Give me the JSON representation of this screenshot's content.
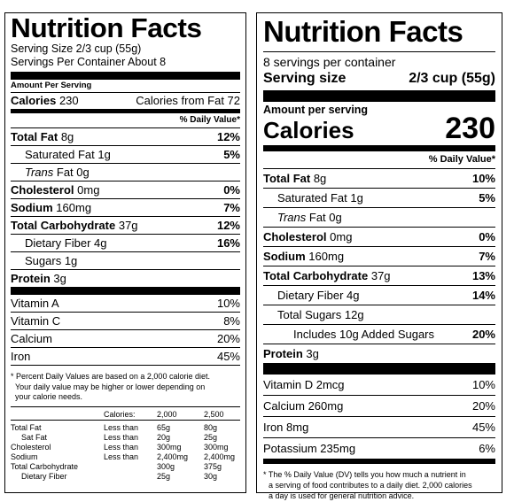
{
  "old_label": {
    "title": "Nutrition Facts",
    "serving_size": "Serving Size 2/3 cup (55g)",
    "servings_per_container": "Servings Per Container About 8",
    "amount_per_serving": "Amount Per Serving",
    "calories_label": "Calories",
    "calories_value": "230",
    "calories_from_fat": "Calories from Fat 72",
    "dv_header": "% Daily Value*",
    "nutrients": [
      {
        "label": "Total Fat",
        "amount": "8g",
        "dv": "12%"
      },
      {
        "label": "Saturated Fat",
        "amount": "1g",
        "dv": "5%"
      },
      {
        "label": "Trans",
        "amount": "Fat 0g",
        "dv": ""
      },
      {
        "label": "Cholesterol",
        "amount": "0mg",
        "dv": "0%"
      },
      {
        "label": "Sodium",
        "amount": "160mg",
        "dv": "7%"
      },
      {
        "label": "Total Carbohydrate",
        "amount": "37g",
        "dv": "12%"
      },
      {
        "label": "Dietary Fiber",
        "amount": "4g",
        "dv": "16%"
      },
      {
        "label": "Sugars",
        "amount": "1g",
        "dv": ""
      },
      {
        "label": "Protein",
        "amount": "3g",
        "dv": ""
      }
    ],
    "vitamins": [
      {
        "label": "Vitamin A",
        "dv": "10%"
      },
      {
        "label": "Vitamin C",
        "dv": "8%"
      },
      {
        "label": "Calcium",
        "dv": "20%"
      },
      {
        "label": "Iron",
        "dv": "45%"
      }
    ],
    "footnote_lines": [
      "* Percent Daily Values are based on a 2,000 calorie diet.",
      "Your daily value may be higher or lower depending on",
      "your calorie needs."
    ],
    "dv_table": {
      "header": [
        "",
        "Calories:",
        "2,000",
        "2,500"
      ],
      "rows": [
        [
          "Total Fat",
          "Less than",
          "65g",
          "80g"
        ],
        [
          "Sat Fat",
          "Less than",
          "20g",
          "25g"
        ],
        [
          "Cholesterol",
          "Less than",
          "300mg",
          "300mg"
        ],
        [
          "Sodium",
          "Less than",
          "2,400mg",
          "2,400mg"
        ],
        [
          "Total Carbohydrate",
          "",
          "300g",
          "375g"
        ],
        [
          "Dietary Fiber",
          "",
          "25g",
          "30g"
        ]
      ]
    }
  },
  "new_label": {
    "title": "Nutrition Facts",
    "servings_per_container": "8 servings per container",
    "serving_size_label": "Serving size",
    "serving_size_value": "2/3 cup (55g)",
    "amount_per_serving": "Amount per serving",
    "calories_label": "Calories",
    "calories_value": "230",
    "dv_header": "% Daily Value*",
    "nutrients": [
      {
        "label": "Total Fat",
        "amount": "8g",
        "dv": "10%"
      },
      {
        "label": "Saturated Fat",
        "amount": "1g",
        "dv": "5%"
      },
      {
        "label": "Trans",
        "amount": "Fat 0g",
        "dv": ""
      },
      {
        "label": "Cholesterol",
        "amount": "0mg",
        "dv": "0%"
      },
      {
        "label": "Sodium",
        "amount": "160mg",
        "dv": "7%"
      },
      {
        "label": "Total Carbohydrate",
        "amount": "37g",
        "dv": "13%"
      },
      {
        "label": "Dietary Fiber",
        "amount": "4g",
        "dv": "14%"
      },
      {
        "label": "Total Sugars",
        "amount": "12g",
        "dv": ""
      },
      {
        "label": "Includes 10g Added Sugars",
        "amount": "",
        "dv": "20%"
      },
      {
        "label": "Protein",
        "amount": "3g",
        "dv": ""
      }
    ],
    "minerals": [
      {
        "label": "Vitamin D 2mcg",
        "dv": "10%"
      },
      {
        "label": "Calcium 260mg",
        "dv": "20%"
      },
      {
        "label": "Iron 8mg",
        "dv": "45%"
      },
      {
        "label": "Potassium 235mg",
        "dv": "6%"
      }
    ],
    "footnote_lines": [
      "* The % Daily Value (DV) tells you how much a nutrient in",
      "a serving of food contributes to a daily diet. 2,000 calories",
      "a day is used for general nutrition advice."
    ]
  }
}
